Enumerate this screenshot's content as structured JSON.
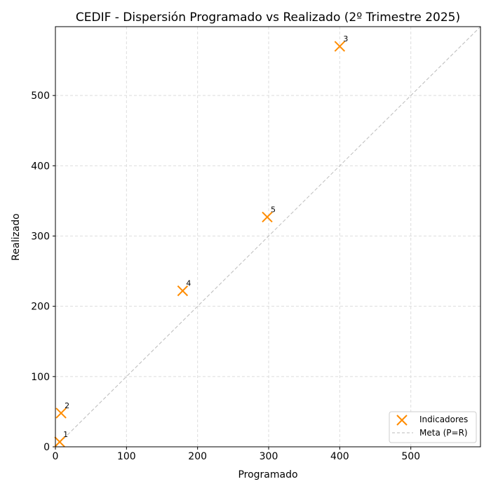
{
  "chart_data": {
    "type": "scatter",
    "title": "CEDIF - Dispersión Programado vs Realizado (2º Trimestre 2025)",
    "xlabel": "Programado",
    "ylabel": "Realizado",
    "xlim": [
      0,
      598
    ],
    "ylim": [
      0,
      598
    ],
    "xticks": [
      0,
      100,
      200,
      300,
      400,
      500
    ],
    "yticks": [
      0,
      100,
      200,
      300,
      400,
      500
    ],
    "grid": true,
    "legend_position": "bottom-right",
    "series": [
      {
        "name": "Indicadores",
        "marker": "x",
        "color": "#ff8c00",
        "points": [
          {
            "label": "1",
            "x": 6,
            "y": 7
          },
          {
            "label": "2",
            "x": 8,
            "y": 48
          },
          {
            "label": "3",
            "x": 400,
            "y": 570
          },
          {
            "label": "4",
            "x": 179,
            "y": 222
          },
          {
            "label": "5",
            "x": 298,
            "y": 327
          }
        ]
      },
      {
        "name": "Meta (P=R)",
        "style": "dashed",
        "color": "#bbbbbb",
        "points": [
          {
            "x": 0,
            "y": 0
          },
          {
            "x": 598,
            "y": 598
          }
        ]
      }
    ]
  }
}
